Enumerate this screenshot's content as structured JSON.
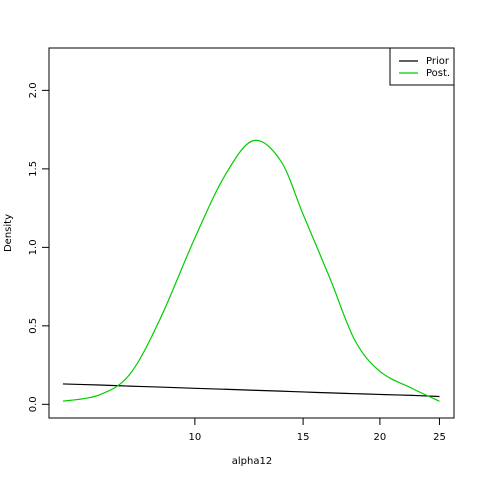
{
  "chart_data": {
    "type": "line",
    "x_label": "alpha12",
    "y_label": "Density",
    "log_x": true,
    "x": [
      6.1,
      6.99,
      7.83,
      8.77,
      10,
      11.2,
      12.45,
      13.8,
      15,
      16.6,
      18.2,
      20,
      22.6,
      25
    ],
    "series": [
      {
        "name": "Prior",
        "color": "#000000",
        "values": [
          0.13,
          0.123,
          0.116,
          0.11,
          0.102,
          0.096,
          0.09,
          0.084,
          0.079,
          0.073,
          0.068,
          0.063,
          0.057,
          0.05
        ]
      },
      {
        "name": "Post.",
        "color": "#00cd00",
        "values": [
          0.02,
          0.06,
          0.19,
          0.54,
          1.06,
          1.46,
          1.68,
          1.55,
          1.21,
          0.8,
          0.41,
          0.21,
          0.1,
          0.02
        ]
      }
    ],
    "xlim": [
      5.79,
      26.4
    ],
    "xticks": [
      10,
      15,
      20,
      25
    ],
    "ylim": [
      -0.087,
      2.27
    ],
    "yticks": [
      {
        "value": 0,
        "label": "0.0"
      },
      {
        "value": 0.5,
        "label": "0.5"
      },
      {
        "value": 1,
        "label": "1.0"
      },
      {
        "value": 1.5,
        "label": "1.5"
      },
      {
        "value": 2,
        "label": "2.0"
      }
    ],
    "legend": "top-right",
    "grid": false
  }
}
